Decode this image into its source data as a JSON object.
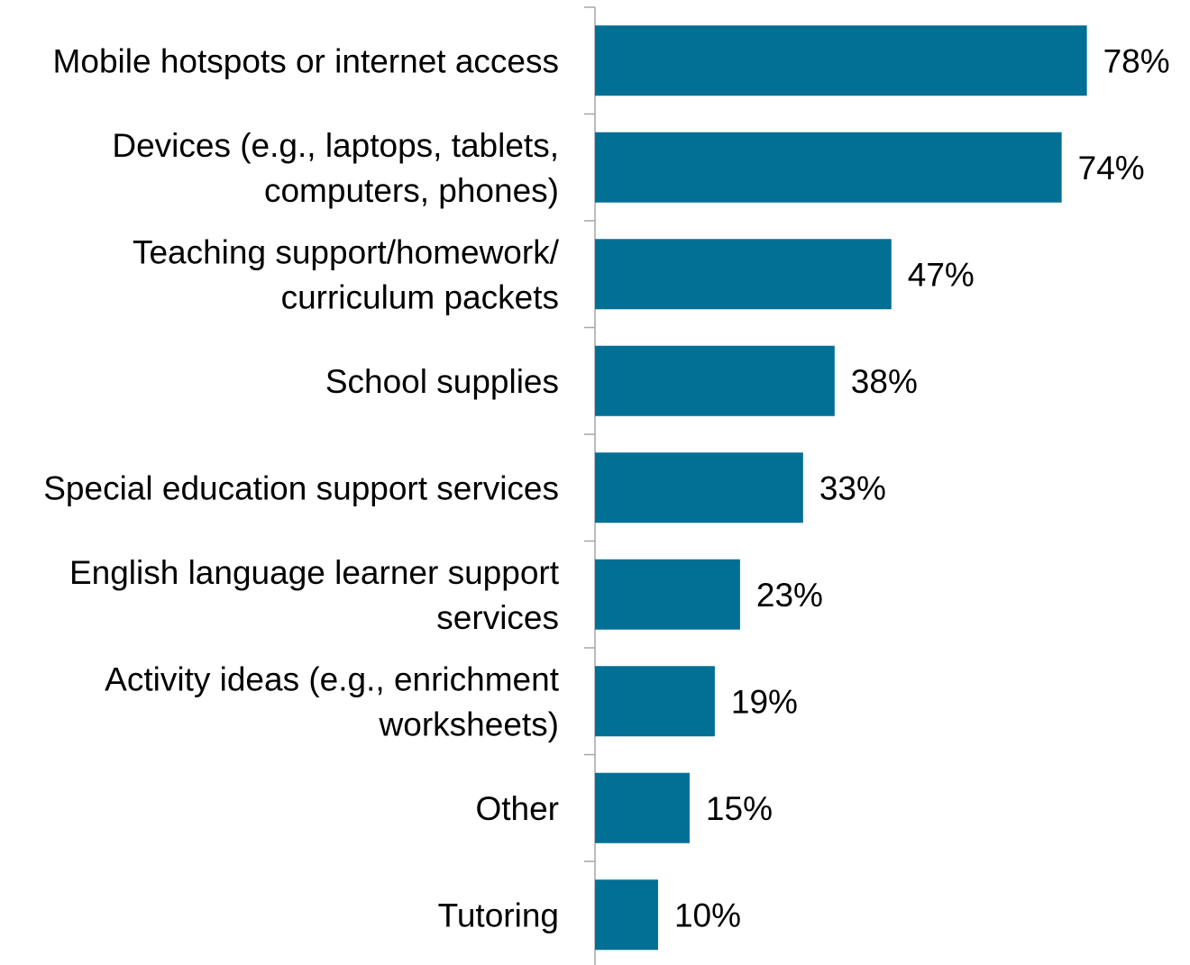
{
  "chart_data": {
    "type": "bar",
    "orientation": "horizontal",
    "categories": [
      [
        "Mobile hotspots or internet access"
      ],
      [
        "Devices (e.g., laptops, tablets,",
        "computers, phones)"
      ],
      [
        "Teaching support/homework/",
        "curriculum packets"
      ],
      [
        "School supplies"
      ],
      [
        "Special education support services"
      ],
      [
        "English language learner support",
        "services"
      ],
      [
        "Activity ideas (e.g., enrichment",
        "worksheets)"
      ],
      [
        "Other"
      ],
      [
        "Tutoring"
      ]
    ],
    "values": [
      78,
      74,
      47,
      38,
      33,
      23,
      19,
      15,
      10
    ],
    "value_labels": [
      "78%",
      "74%",
      "47%",
      "38%",
      "33%",
      "23%",
      "19%",
      "15%",
      "10%"
    ],
    "unit": "%",
    "bar_color": "#026f95",
    "axis_color": "#a6a6a6",
    "grid": false,
    "legend": "none"
  }
}
